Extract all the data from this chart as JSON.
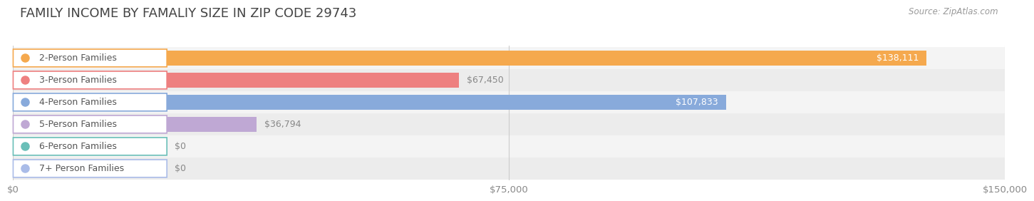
{
  "title": "FAMILY INCOME BY FAMALIY SIZE IN ZIP CODE 29743",
  "source": "Source: ZipAtlas.com",
  "categories": [
    "2-Person Families",
    "3-Person Families",
    "4-Person Families",
    "5-Person Families",
    "6-Person Families",
    "7+ Person Families"
  ],
  "values": [
    138111,
    67450,
    107833,
    36794,
    0,
    0
  ],
  "bar_colors": [
    "#F5A94E",
    "#EE8080",
    "#88AADB",
    "#BFA8D4",
    "#6ABFB8",
    "#AABCE8"
  ],
  "xlim": [
    0,
    150000
  ],
  "xticks": [
    0,
    75000,
    150000
  ],
  "xticklabels": [
    "$0",
    "$75,000",
    "$150,000"
  ],
  "bg_color": "#FFFFFF",
  "bar_height": 0.68,
  "title_fontsize": 13,
  "tick_fontsize": 9.5,
  "label_fontsize": 9,
  "value_fontsize": 9
}
